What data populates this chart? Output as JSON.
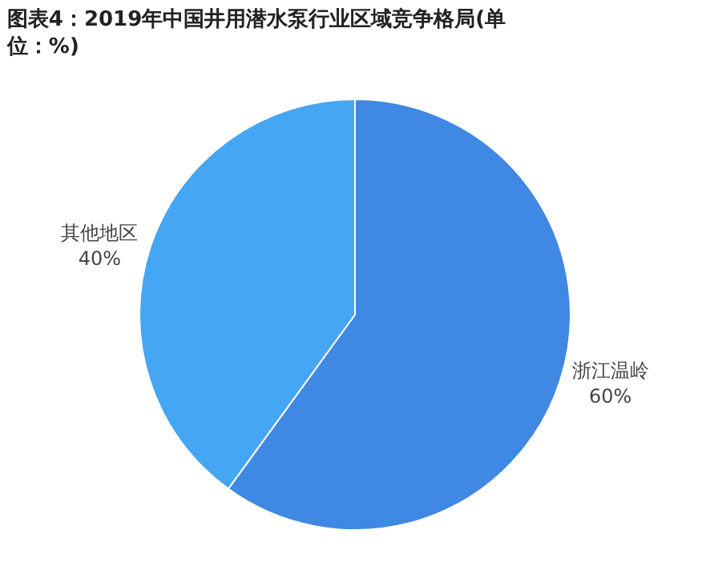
{
  "chart_data": {
    "type": "pie",
    "title": "图表4：2019年中国井用潜水泵行业区域竞争格局(单位：%)",
    "categories": [
      "浙江温岭",
      "其他地区"
    ],
    "values": [
      60,
      40
    ],
    "colors": [
      "#3f88e3",
      "#45a6f3"
    ],
    "value_labels": [
      "60%",
      "40%"
    ],
    "legend": false
  }
}
